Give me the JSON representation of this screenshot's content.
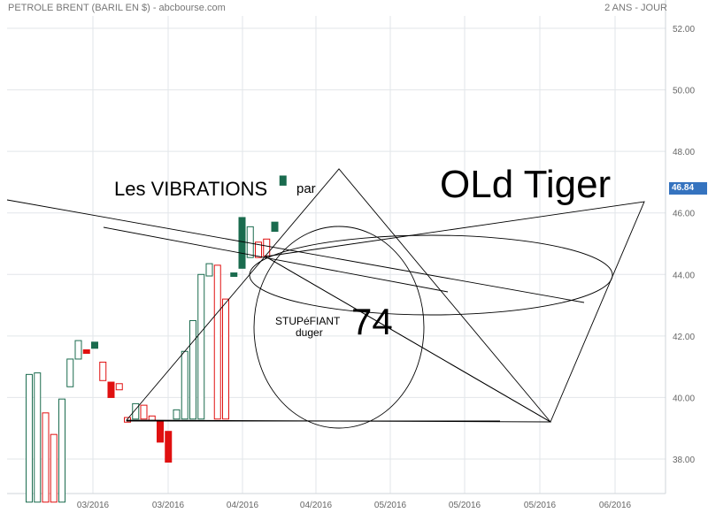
{
  "header": {
    "title": "PETROLE BRENT (BARIL EN $) - abcbourse.com",
    "period": "2 ANS - JOUR"
  },
  "last_price": "46.84",
  "annotations": {
    "vibrations": "Les VIBRATIONS",
    "par": "par",
    "author": "OLd Tiger",
    "number": "74",
    "stupefiant": "STUPéFIANT",
    "duger": "duger"
  },
  "colors": {
    "up": "#1a6b4e",
    "down": "#e01010",
    "grid": "#e2e6ea",
    "axis_text": "#666666",
    "price_tag": "#3573bf"
  },
  "chart_data": {
    "type": "candlestick",
    "title": "PETROLE BRENT (BARIL EN $) - abcbourse.com",
    "period": "2 ANS - JOUR",
    "ylim": [
      36.6,
      52.6
    ],
    "y_ticks": [
      "52.00",
      "50.00",
      "48.00",
      "46.00",
      "44.00",
      "42.00",
      "40.00",
      "38.00"
    ],
    "y_tick_values": [
      52,
      50,
      48,
      46,
      44,
      42,
      40,
      38
    ],
    "x_tick_labels": [
      "03/2016",
      "03/2016",
      "04/2016",
      "04/2016",
      "05/2016",
      "05/2016",
      "05/2016",
      "06/2016"
    ],
    "last_value": 46.84,
    "candles": [
      {
        "o": 36.6,
        "c": 40.75,
        "filled": false,
        "col": "up"
      },
      {
        "o": 36.6,
        "c": 40.8,
        "filled": false,
        "col": "up"
      },
      {
        "o": 39.5,
        "c": 36.6,
        "filled": false,
        "col": "down"
      },
      {
        "o": 38.8,
        "c": 36.6,
        "filled": false,
        "col": "down"
      },
      {
        "o": 36.6,
        "c": 39.95,
        "filled": false,
        "col": "up"
      },
      {
        "o": 40.35,
        "c": 41.25,
        "filled": false,
        "col": "up"
      },
      {
        "o": 41.25,
        "c": 41.85,
        "filled": false,
        "col": "up"
      },
      {
        "o": 41.55,
        "c": 41.45,
        "filled": true,
        "col": "down"
      },
      {
        "o": 41.8,
        "c": 41.6,
        "filled": true,
        "col": "up"
      },
      {
        "o": 41.15,
        "c": 40.55,
        "filled": false,
        "col": "down"
      },
      {
        "o": 40.5,
        "c": 40.0,
        "filled": true,
        "col": "down"
      },
      {
        "o": 40.25,
        "c": 40.45,
        "filled": false,
        "col": "down"
      },
      {
        "o": 39.2,
        "c": 39.35,
        "filled": false,
        "col": "down"
      },
      {
        "o": 39.3,
        "c": 39.8,
        "filled": false,
        "col": "up"
      },
      {
        "o": 39.75,
        "c": 39.3,
        "filled": false,
        "col": "down"
      },
      {
        "o": 39.4,
        "c": 39.25,
        "filled": false,
        "col": "down"
      },
      {
        "o": 39.25,
        "c": 38.55,
        "filled": true,
        "col": "down"
      },
      {
        "o": 38.9,
        "c": 37.9,
        "filled": true,
        "col": "down"
      },
      {
        "o": 39.3,
        "c": 39.6,
        "filled": false,
        "col": "up"
      },
      {
        "o": 39.3,
        "c": 41.5,
        "filled": false,
        "col": "up"
      },
      {
        "o": 39.3,
        "c": 42.5,
        "filled": false,
        "col": "up"
      },
      {
        "o": 39.3,
        "c": 44.0,
        "filled": false,
        "col": "up"
      },
      {
        "o": 43.95,
        "c": 44.35,
        "filled": false,
        "col": "up"
      },
      {
        "o": 44.3,
        "c": 39.3,
        "filled": false,
        "col": "down"
      },
      {
        "o": 43.2,
        "c": 39.3,
        "filled": false,
        "col": "down"
      },
      {
        "o": 44.05,
        "c": 43.95,
        "filled": true,
        "col": "up"
      },
      {
        "o": 44.2,
        "c": 45.85,
        "filled": true,
        "col": "up"
      },
      {
        "o": 44.55,
        "c": 45.55,
        "filled": false,
        "col": "up"
      },
      {
        "o": 45.05,
        "c": 44.55,
        "filled": false,
        "col": "down"
      },
      {
        "o": 45.15,
        "c": 44.6,
        "filled": false,
        "col": "down"
      },
      {
        "o": 45.4,
        "c": 45.7,
        "filled": true,
        "col": "up"
      },
      {
        "o": 46.9,
        "c": 47.2,
        "filled": true,
        "col": "up"
      }
    ]
  }
}
